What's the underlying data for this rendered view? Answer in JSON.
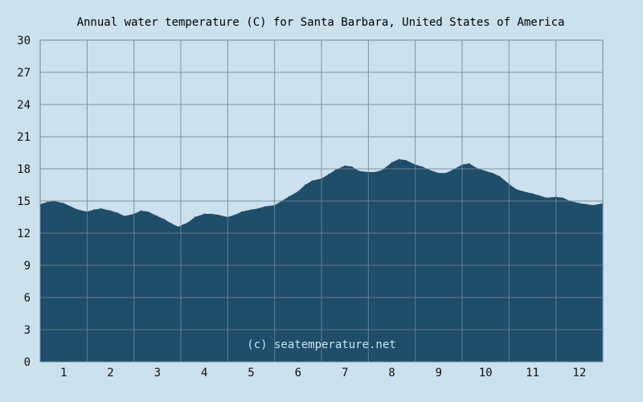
{
  "chart_data": {
    "type": "area",
    "title": "Annual water temperature (C) for Santa Barbara, United States of America",
    "xlabel": "",
    "ylabel": "",
    "x_ticks": [
      "1",
      "2",
      "3",
      "4",
      "5",
      "6",
      "7",
      "8",
      "9",
      "10",
      "11",
      "12"
    ],
    "y_ticks": [
      "0",
      "3",
      "6",
      "9",
      "12",
      "15",
      "18",
      "21",
      "24",
      "27",
      "30"
    ],
    "ylim": [
      0,
      30
    ],
    "xlim": [
      0.5,
      12.5
    ],
    "grid": true,
    "credit": "(c) seatemperature.net",
    "series": [
      {
        "x": [
          0.5,
          0.65,
          0.8,
          1.0,
          1.15,
          1.3,
          1.5,
          1.65,
          1.8,
          2.0,
          2.15,
          2.3,
          2.5,
          2.65,
          2.8,
          3.0,
          3.15,
          3.3,
          3.45,
          3.55,
          3.65,
          3.8,
          4.0,
          4.15,
          4.3,
          4.5,
          4.65,
          4.8,
          5.0,
          5.15,
          5.3,
          5.5,
          5.65,
          5.8,
          6.0,
          6.15,
          6.3,
          6.5,
          6.65,
          6.8,
          7.0,
          7.15,
          7.3,
          7.5,
          7.65,
          7.8,
          8.0,
          8.15,
          8.3,
          8.5,
          8.65,
          8.8,
          9.0,
          9.15,
          9.3,
          9.5,
          9.65,
          9.8,
          10.0,
          10.15,
          10.3,
          10.5,
          10.65,
          10.8,
          11.0,
          11.15,
          11.3,
          11.5,
          11.65,
          11.8,
          12.0,
          12.15,
          12.3,
          12.5
        ],
        "values": [
          14.7,
          14.9,
          15.0,
          14.8,
          14.5,
          14.2,
          14.0,
          14.2,
          14.3,
          14.1,
          13.9,
          13.6,
          13.8,
          14.1,
          14.0,
          13.6,
          13.3,
          12.9,
          12.6,
          12.8,
          13.0,
          13.5,
          13.8,
          13.8,
          13.7,
          13.5,
          13.7,
          14.0,
          14.2,
          14.3,
          14.5,
          14.6,
          15.0,
          15.4,
          15.9,
          16.5,
          16.9,
          17.1,
          17.5,
          17.9,
          18.3,
          18.2,
          17.8,
          17.7,
          17.7,
          17.9,
          18.6,
          18.9,
          18.8,
          18.4,
          18.2,
          17.9,
          17.6,
          17.6,
          17.9,
          18.4,
          18.5,
          18.1,
          17.8,
          17.6,
          17.3,
          16.6,
          16.1,
          15.9,
          15.7,
          15.5,
          15.3,
          15.4,
          15.3,
          15.0,
          14.8,
          14.7,
          14.6,
          14.8
        ]
      }
    ]
  },
  "colors": {
    "background": "#cbe1ed",
    "fill": "#1e4e69",
    "grid": "#6f8694",
    "border": "#6f8694",
    "grid_on_fill": "#4f7488"
  }
}
